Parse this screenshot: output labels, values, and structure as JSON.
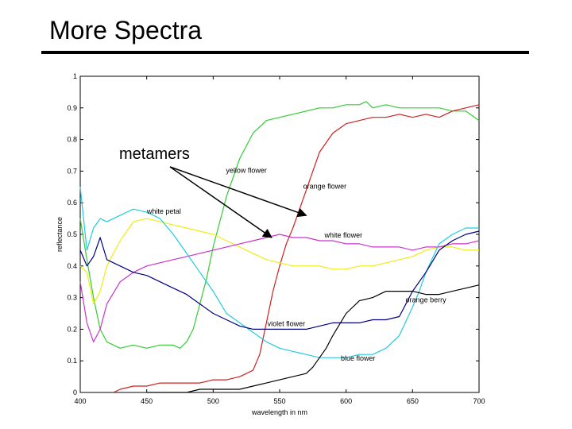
{
  "slide": {
    "title": "More Spectra"
  },
  "chart_data": {
    "type": "line",
    "title": "More Spectra",
    "xlabel": "wavelength in nm",
    "ylabel": "reflectance",
    "xlim": [
      400,
      700
    ],
    "ylim": [
      0,
      1
    ],
    "xticks": [
      400,
      450,
      500,
      550,
      600,
      650,
      700
    ],
    "yticks": [
      "0",
      "0.1",
      "0.2",
      "0.3",
      "0.4",
      "0.5",
      "0.6",
      "0.7",
      "0.8",
      "0.9",
      "1"
    ],
    "annotation": "metamers",
    "series": [
      {
        "name": "yellow flower",
        "color": "#33cc33",
        "x": [
          400,
          405,
          410,
          415,
          420,
          430,
          440,
          450,
          460,
          470,
          475,
          480,
          485,
          490,
          495,
          500,
          510,
          520,
          530,
          540,
          550,
          560,
          570,
          580,
          590,
          600,
          610,
          615,
          620,
          630,
          640,
          650,
          660,
          670,
          680,
          690,
          700
        ],
        "y": [
          0.55,
          0.42,
          0.3,
          0.2,
          0.16,
          0.14,
          0.15,
          0.14,
          0.15,
          0.15,
          0.14,
          0.16,
          0.2,
          0.28,
          0.36,
          0.46,
          0.62,
          0.74,
          0.82,
          0.86,
          0.87,
          0.88,
          0.89,
          0.9,
          0.9,
          0.91,
          0.91,
          0.92,
          0.9,
          0.91,
          0.9,
          0.9,
          0.9,
          0.9,
          0.89,
          0.89,
          0.86
        ]
      },
      {
        "name": "orange flower",
        "color": "#cc2222",
        "x": [
          425,
          430,
          440,
          450,
          460,
          470,
          480,
          490,
          500,
          510,
          520,
          530,
          535,
          540,
          545,
          550,
          555,
          560,
          565,
          570,
          575,
          580,
          590,
          600,
          610,
          620,
          630,
          640,
          650,
          660,
          670,
          680,
          690,
          700
        ],
        "y": [
          0.0,
          0.01,
          0.02,
          0.02,
          0.03,
          0.03,
          0.03,
          0.03,
          0.04,
          0.04,
          0.05,
          0.07,
          0.12,
          0.22,
          0.32,
          0.4,
          0.47,
          0.52,
          0.58,
          0.64,
          0.7,
          0.76,
          0.82,
          0.85,
          0.86,
          0.87,
          0.87,
          0.88,
          0.87,
          0.88,
          0.87,
          0.89,
          0.9,
          0.91
        ]
      },
      {
        "name": "white petal",
        "color": "#eeee11",
        "x": [
          400,
          405,
          410,
          415,
          420,
          430,
          440,
          450,
          460,
          470,
          480,
          490,
          500,
          510,
          520,
          530,
          540,
          550,
          560,
          570,
          580,
          590,
          600,
          610,
          620,
          630,
          640,
          650,
          660,
          670,
          680,
          690,
          700
        ],
        "y": [
          0.4,
          0.38,
          0.28,
          0.32,
          0.4,
          0.48,
          0.54,
          0.55,
          0.54,
          0.53,
          0.52,
          0.51,
          0.5,
          0.48,
          0.46,
          0.44,
          0.42,
          0.41,
          0.4,
          0.4,
          0.4,
          0.39,
          0.39,
          0.4,
          0.4,
          0.41,
          0.42,
          0.43,
          0.45,
          0.46,
          0.46,
          0.45,
          0.45
        ]
      },
      {
        "name": "white flower",
        "color": "#cc33cc",
        "x": [
          400,
          405,
          410,
          415,
          420,
          430,
          440,
          450,
          460,
          470,
          480,
          490,
          500,
          510,
          520,
          530,
          540,
          550,
          560,
          570,
          580,
          590,
          600,
          610,
          620,
          630,
          640,
          650,
          660,
          670,
          680,
          690,
          700
        ],
        "y": [
          0.35,
          0.22,
          0.16,
          0.2,
          0.28,
          0.35,
          0.38,
          0.4,
          0.41,
          0.42,
          0.43,
          0.44,
          0.45,
          0.46,
          0.47,
          0.48,
          0.49,
          0.5,
          0.49,
          0.49,
          0.48,
          0.48,
          0.47,
          0.47,
          0.46,
          0.46,
          0.46,
          0.45,
          0.46,
          0.46,
          0.47,
          0.47,
          0.48
        ]
      },
      {
        "name": "blue flower",
        "color": "#22ccdd",
        "x": [
          400,
          405,
          410,
          415,
          420,
          430,
          440,
          450,
          460,
          470,
          480,
          490,
          500,
          510,
          520,
          530,
          540,
          550,
          560,
          570,
          580,
          590,
          600,
          610,
          620,
          630,
          640,
          650,
          655,
          660,
          670,
          680,
          690,
          700
        ],
        "y": [
          0.65,
          0.45,
          0.52,
          0.55,
          0.54,
          0.56,
          0.58,
          0.57,
          0.55,
          0.5,
          0.44,
          0.38,
          0.32,
          0.25,
          0.22,
          0.19,
          0.16,
          0.14,
          0.13,
          0.12,
          0.11,
          0.11,
          0.11,
          0.12,
          0.12,
          0.14,
          0.18,
          0.27,
          0.32,
          0.38,
          0.47,
          0.5,
          0.52,
          0.52
        ]
      },
      {
        "name": "violet flower",
        "color": "#000080",
        "x": [
          400,
          405,
          410,
          415,
          420,
          425,
          430,
          440,
          450,
          460,
          470,
          480,
          490,
          500,
          510,
          520,
          530,
          540,
          550,
          560,
          570,
          580,
          590,
          600,
          610,
          620,
          630,
          640,
          650,
          660,
          670,
          680,
          690,
          700
        ],
        "y": [
          0.45,
          0.4,
          0.43,
          0.49,
          0.42,
          0.41,
          0.4,
          0.38,
          0.37,
          0.35,
          0.33,
          0.31,
          0.28,
          0.25,
          0.23,
          0.21,
          0.2,
          0.2,
          0.2,
          0.2,
          0.2,
          0.21,
          0.22,
          0.22,
          0.22,
          0.23,
          0.23,
          0.24,
          0.32,
          0.38,
          0.45,
          0.48,
          0.5,
          0.51
        ]
      },
      {
        "name": "orange berry",
        "color": "#000000",
        "x": [
          450,
          460,
          470,
          480,
          490,
          500,
          510,
          520,
          530,
          540,
          550,
          560,
          570,
          575,
          580,
          585,
          590,
          600,
          610,
          620,
          630,
          640,
          650,
          660,
          670,
          680,
          690,
          700
        ],
        "y": [
          0.0,
          0.0,
          0.0,
          0.0,
          0.01,
          0.01,
          0.01,
          0.01,
          0.02,
          0.03,
          0.04,
          0.05,
          0.06,
          0.08,
          0.11,
          0.14,
          0.18,
          0.25,
          0.29,
          0.3,
          0.32,
          0.32,
          0.32,
          0.31,
          0.31,
          0.32,
          0.33,
          0.34
        ]
      }
    ],
    "curve_labels": [
      {
        "text": "yellow flower",
        "x": 525,
        "y": 0.695
      },
      {
        "text": "orange flower",
        "x": 584,
        "y": 0.645
      },
      {
        "text": "white petal",
        "x": 463,
        "y": 0.565
      },
      {
        "text": "white flower",
        "x": 598,
        "y": 0.49
      },
      {
        "text": "orange berry",
        "x": 660,
        "y": 0.285
      },
      {
        "text": "violet flower",
        "x": 555,
        "y": 0.21
      },
      {
        "text": "blue flower",
        "x": 609,
        "y": 0.1
      }
    ],
    "arrow_targets": [
      {
        "x": 570,
        "y": 0.56
      },
      {
        "x": 544,
        "y": 0.49
      }
    ]
  }
}
